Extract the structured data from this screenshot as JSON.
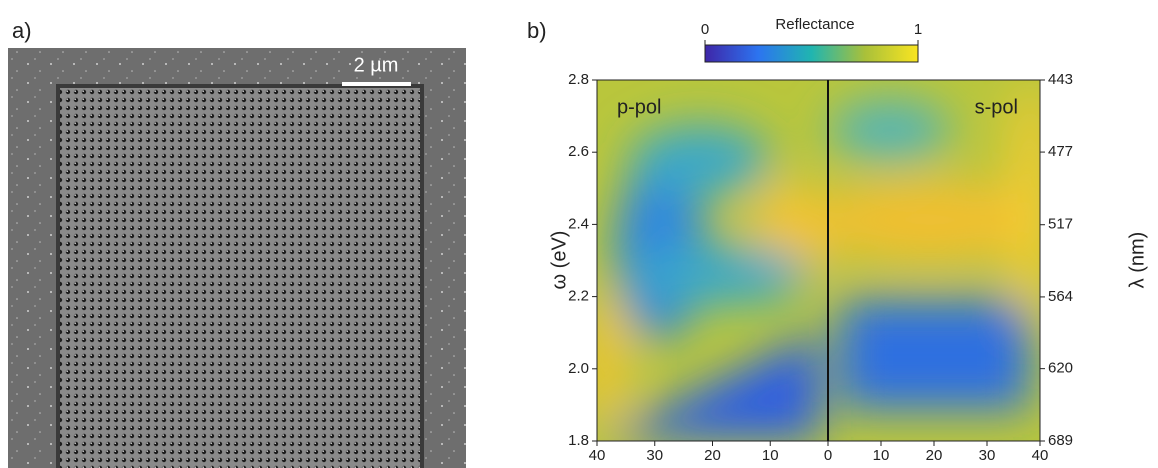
{
  "panel_a": {
    "label": "a)",
    "scale_bar": "2 µm"
  },
  "panel_b": {
    "label": "b)",
    "colorbar": {
      "title": "Reflectance",
      "lim": [
        0,
        1
      ],
      "ticks": [
        0,
        1
      ]
    },
    "ylabel": "ω (eV)",
    "y2label": "λ (nm)",
    "ylim": [
      1.8,
      2.8
    ],
    "yticks": [
      1.8,
      {
        "value": 2.0,
        "label": "2.0"
      },
      2.2,
      2.4,
      2.6,
      2.8
    ],
    "y2lim": [
      689,
      443
    ],
    "y2scale": "reciprocal",
    "y2ticks": [
      443,
      477,
      517,
      564,
      620,
      689
    ],
    "subplots": [
      {
        "annotation": "p-pol",
        "xlim": [
          40,
          0
        ],
        "xticks": [
          40,
          30,
          20,
          10,
          0
        ]
      },
      {
        "annotation": "s-pol",
        "xlim": [
          0,
          40
        ],
        "xticks": [
          10,
          20,
          30,
          40
        ]
      }
    ]
  }
}
